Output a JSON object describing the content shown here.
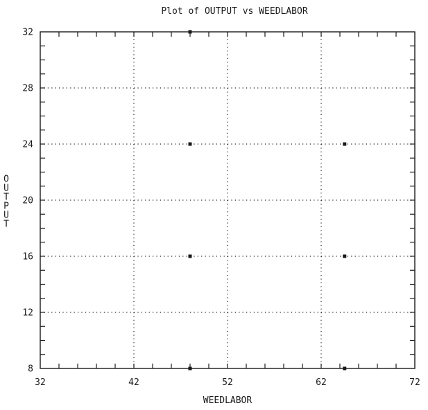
{
  "chart_data": {
    "type": "scatter",
    "title": "Plot of OUTPUT vs WEEDLABOR",
    "xlabel": "WEEDLABOR",
    "ylabel": "OUTPUT",
    "xlim": [
      32,
      72
    ],
    "ylim": [
      8,
      32
    ],
    "x_ticks": [
      32,
      42,
      52,
      62,
      72
    ],
    "y_ticks": [
      8,
      12,
      16,
      20,
      24,
      28,
      32
    ],
    "grid": true,
    "grid_style": "dotted",
    "legend": "none",
    "series": [
      {
        "points": [
          {
            "x": 48.0,
            "y": 32
          },
          {
            "x": 48.0,
            "y": 24
          },
          {
            "x": 64.5,
            "y": 24
          },
          {
            "x": 48.0,
            "y": 16
          },
          {
            "x": 64.5,
            "y": 16
          },
          {
            "x": 48.0,
            "y": 8
          },
          {
            "x": 64.5,
            "y": 8
          }
        ]
      }
    ],
    "colors": {
      "ink": "#1a1a1a",
      "background": "#ffffff"
    }
  }
}
